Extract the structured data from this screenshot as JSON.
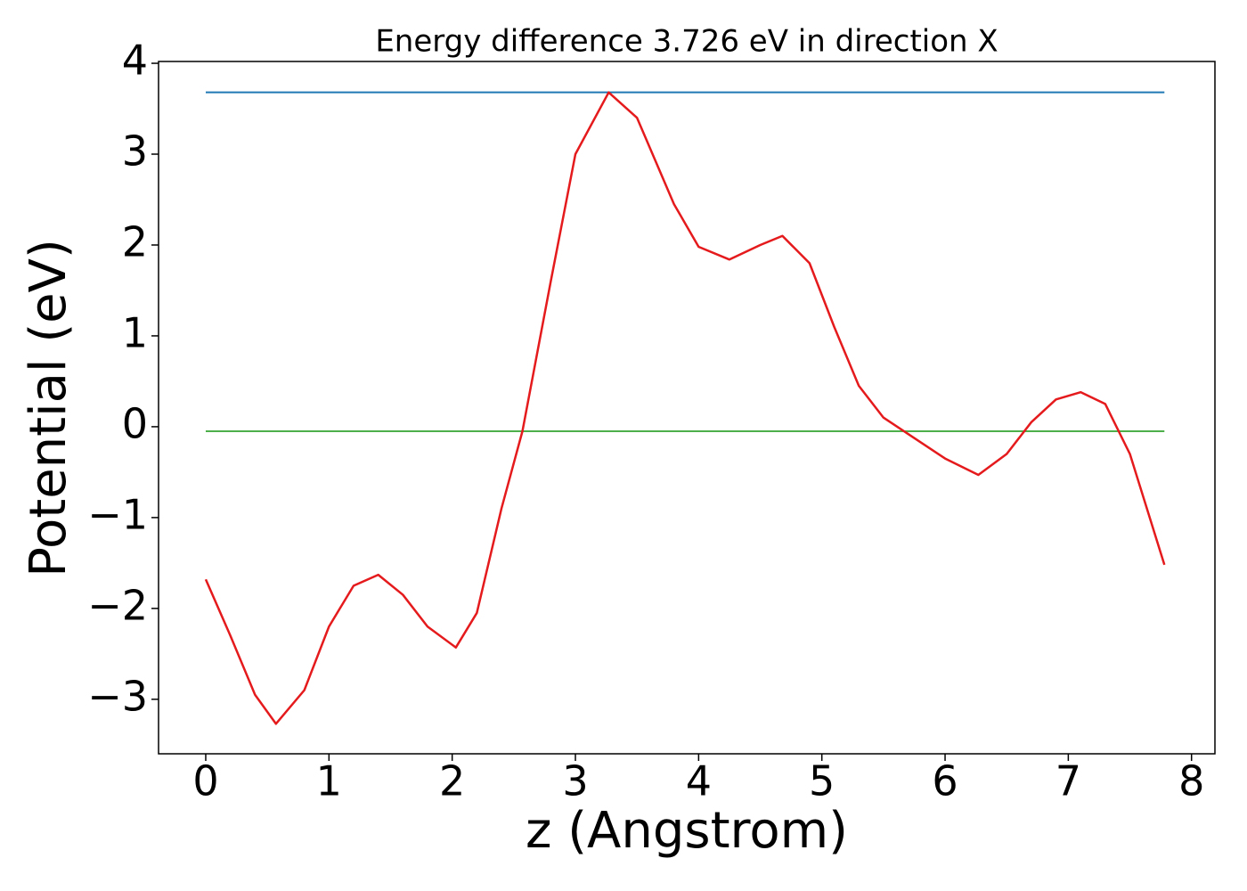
{
  "chart_data": {
    "type": "line",
    "title": "Energy difference 3.726 eV in direction X",
    "xlabel": "z (Angstrom)",
    "ylabel": "Potential (eV)",
    "x": [
      0,
      0.2,
      0.4,
      0.57,
      0.8,
      1.0,
      1.2,
      1.4,
      1.6,
      1.8,
      2.03,
      2.2,
      2.4,
      2.57,
      2.8,
      3.0,
      3.27,
      3.5,
      3.8,
      4.0,
      4.25,
      4.5,
      4.68,
      4.9,
      5.1,
      5.3,
      5.5,
      5.7,
      6.0,
      6.27,
      6.5,
      6.7,
      6.9,
      7.1,
      7.3,
      7.5,
      7.78
    ],
    "series": [
      {
        "color": "#e41a1c",
        "values": [
          -1.68,
          -2.3,
          -2.95,
          -3.27,
          -2.9,
          -2.2,
          -1.75,
          -1.63,
          -1.85,
          -2.2,
          -2.43,
          -2.05,
          -0.9,
          -0.05,
          1.6,
          3.0,
          3.68,
          3.4,
          2.45,
          1.98,
          1.84,
          2.0,
          2.1,
          1.8,
          1.1,
          0.45,
          0.1,
          -0.08,
          -0.35,
          -0.53,
          -0.3,
          0.05,
          0.3,
          0.38,
          0.25,
          -0.3,
          -1.52
        ]
      }
    ],
    "hlines": [
      {
        "value": 3.68,
        "color": "#1f77b4"
      },
      {
        "value": -0.05,
        "color": "#4daf4a"
      }
    ],
    "xlim": [
      -0.383,
      8.19
    ],
    "ylim": [
      -3.6,
      4.02
    ],
    "xticks": [
      0,
      1,
      2,
      3,
      4,
      5,
      6,
      7,
      8
    ],
    "yticks": [
      {
        "value": -3,
        "label": "−3"
      },
      {
        "value": -2,
        "label": "−2"
      },
      {
        "value": -1,
        "label": "−1"
      },
      0,
      1,
      2,
      3,
      4
    ]
  }
}
